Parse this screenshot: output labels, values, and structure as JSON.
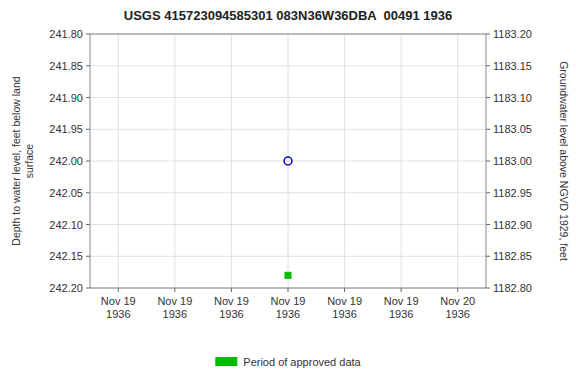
{
  "chart_data": {
    "type": "scatter",
    "title": "USGS 415723094585301 083N36W36DBA  00491 1936",
    "y_label": "Depth to water level, feet below land\nsurface",
    "y2_label": "Groundwater level above NGVD 1929, feet",
    "categories": [
      "Nov 19\n1936",
      "Nov 19\n1936",
      "Nov 19\n1936",
      "Nov 19\n1936",
      "Nov 19\n1936",
      "Nov 19\n1936",
      "Nov 20\n1936"
    ],
    "series": [
      {
        "color": "#0000cc",
        "marker": "circle",
        "values": [
          null,
          null,
          null,
          242.0,
          null,
          null,
          null
        ]
      },
      {
        "name": "Period of approved data",
        "color": "#00bb00",
        "marker": "square",
        "values": [
          null,
          null,
          null,
          242.18,
          null,
          null,
          null
        ]
      }
    ],
    "ylim": [
      242.2,
      241.8
    ],
    "yticks": [
      {
        "value": 241.8,
        "label": "241.80"
      },
      241.85,
      {
        "value": 241.9,
        "label": "241.90"
      },
      241.95,
      {
        "value": 242.0,
        "label": "242.00"
      },
      242.05,
      {
        "value": 242.1,
        "label": "242.10"
      },
      242.15,
      {
        "value": 242.2,
        "label": "242.20"
      }
    ],
    "y2lim": [
      1182.8,
      1183.2
    ],
    "y2ticks": [
      {
        "value": 1183.2,
        "label": "1183.20"
      },
      1183.15,
      {
        "value": 1183.1,
        "label": "1183.10"
      },
      1183.05,
      {
        "value": 1183.0,
        "label": "1183.00"
      },
      1182.95,
      {
        "value": 1182.9,
        "label": "1182.90"
      },
      1182.85,
      {
        "value": 1182.8,
        "label": "1182.80"
      }
    ],
    "grid": true,
    "legend": "bottom"
  }
}
